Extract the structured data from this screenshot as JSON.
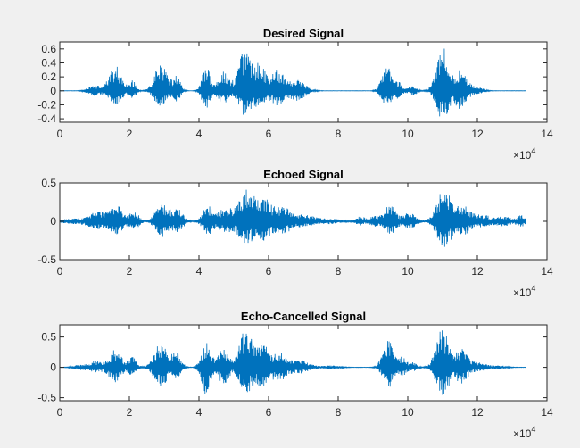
{
  "chart_data": [
    {
      "type": "line",
      "title": "Desired Signal",
      "xlim": [
        0,
        140000
      ],
      "ylim": [
        -0.45,
        0.7
      ],
      "xticks": [
        0,
        20000,
        40000,
        60000,
        80000,
        100000,
        120000,
        140000
      ],
      "xtick_labels": [
        "0",
        "2",
        "4",
        "6",
        "8",
        "10",
        "12",
        "14"
      ],
      "yticks": [
        -0.4,
        -0.2,
        0,
        0.2,
        0.4,
        0.6
      ],
      "ytick_labels": [
        "-0.4",
        "-0.2",
        "0",
        "0.2",
        "0.4",
        "0.6"
      ],
      "x_exponent": {
        "base": "×10",
        "power": "4"
      },
      "signal_length": 134000,
      "color": "#0072BD",
      "bursts": [
        {
          "c": 10000,
          "w": 2500,
          "a": 0.08,
          "neg": 0.07
        },
        {
          "c": 16000,
          "w": 2500,
          "a": 0.36,
          "neg": 0.22
        },
        {
          "c": 21000,
          "w": 1300,
          "a": 0.15,
          "neg": 0.1
        },
        {
          "c": 29000,
          "w": 2400,
          "a": 0.4,
          "neg": 0.25
        },
        {
          "c": 33500,
          "w": 1600,
          "a": 0.22,
          "neg": 0.15
        },
        {
          "c": 42000,
          "w": 1600,
          "a": 0.36,
          "neg": 0.25
        },
        {
          "c": 47000,
          "w": 2200,
          "a": 0.28,
          "neg": 0.18
        },
        {
          "c": 53000,
          "w": 2400,
          "a": 0.62,
          "neg": 0.36
        },
        {
          "c": 57500,
          "w": 2200,
          "a": 0.42,
          "neg": 0.28
        },
        {
          "c": 62500,
          "w": 2600,
          "a": 0.3,
          "neg": 0.2
        },
        {
          "c": 68000,
          "w": 3500,
          "a": 0.16,
          "neg": 0.14
        },
        {
          "c": 94000,
          "w": 2000,
          "a": 0.35,
          "neg": 0.23
        },
        {
          "c": 97500,
          "w": 1500,
          "a": 0.12,
          "neg": 0.1
        },
        {
          "c": 101500,
          "w": 1600,
          "a": 0.07,
          "neg": 0.06
        },
        {
          "c": 110000,
          "w": 2400,
          "a": 0.66,
          "neg": 0.42
        },
        {
          "c": 115000,
          "w": 2400,
          "a": 0.3,
          "neg": 0.25
        },
        {
          "c": 119500,
          "w": 2500,
          "a": 0.06,
          "neg": 0.05
        }
      ],
      "noise": 0.002
    },
    {
      "type": "line",
      "title": "Echoed Signal",
      "xlim": [
        0,
        140000
      ],
      "ylim": [
        -0.5,
        0.5
      ],
      "xticks": [
        0,
        20000,
        40000,
        60000,
        80000,
        100000,
        120000,
        140000
      ],
      "xtick_labels": [
        "0",
        "2",
        "4",
        "6",
        "8",
        "10",
        "12",
        "14"
      ],
      "yticks": [
        -0.5,
        0,
        0.5
      ],
      "ytick_labels": [
        "-0.5",
        "0",
        "0.5"
      ],
      "x_exponent": {
        "base": "×10",
        "power": "4"
      },
      "signal_length": 134000,
      "color": "#0072BD",
      "bursts": [
        {
          "c": 4000,
          "w": 5000,
          "a": 0.03,
          "neg": 0.03
        },
        {
          "c": 11000,
          "w": 3500,
          "a": 0.12,
          "neg": 0.1
        },
        {
          "c": 16500,
          "w": 2600,
          "a": 0.2,
          "neg": 0.16
        },
        {
          "c": 21500,
          "w": 1800,
          "a": 0.12,
          "neg": 0.1
        },
        {
          "c": 29500,
          "w": 2600,
          "a": 0.23,
          "neg": 0.2
        },
        {
          "c": 34000,
          "w": 2000,
          "a": 0.15,
          "neg": 0.13
        },
        {
          "c": 42500,
          "w": 2000,
          "a": 0.2,
          "neg": 0.17
        },
        {
          "c": 47500,
          "w": 2500,
          "a": 0.18,
          "neg": 0.15
        },
        {
          "c": 53500,
          "w": 3000,
          "a": 0.4,
          "neg": 0.3
        },
        {
          "c": 58500,
          "w": 2800,
          "a": 0.28,
          "neg": 0.22
        },
        {
          "c": 64000,
          "w": 3500,
          "a": 0.18,
          "neg": 0.15
        },
        {
          "c": 70500,
          "w": 4000,
          "a": 0.08,
          "neg": 0.07
        },
        {
          "c": 78000,
          "w": 3500,
          "a": 0.03,
          "neg": 0.03
        },
        {
          "c": 86500,
          "w": 1800,
          "a": 0.06,
          "neg": 0.05
        },
        {
          "c": 90500,
          "w": 1800,
          "a": 0.08,
          "neg": 0.07
        },
        {
          "c": 95000,
          "w": 2200,
          "a": 0.22,
          "neg": 0.18
        },
        {
          "c": 100500,
          "w": 2400,
          "a": 0.12,
          "neg": 0.1
        },
        {
          "c": 110500,
          "w": 2800,
          "a": 0.44,
          "neg": 0.35
        },
        {
          "c": 116000,
          "w": 2800,
          "a": 0.2,
          "neg": 0.17
        },
        {
          "c": 121500,
          "w": 3000,
          "a": 0.08,
          "neg": 0.07
        },
        {
          "c": 127500,
          "w": 3000,
          "a": 0.06,
          "neg": 0.06
        },
        {
          "c": 132500,
          "w": 1500,
          "a": 0.08,
          "neg": 0.07
        }
      ],
      "noise": 0.004
    },
    {
      "type": "line",
      "title": "Echo-Cancelled Signal",
      "xlim": [
        0,
        140000
      ],
      "ylim": [
        -0.55,
        0.7
      ],
      "xticks": [
        0,
        20000,
        40000,
        60000,
        80000,
        100000,
        120000,
        140000
      ],
      "xtick_labels": [
        "0",
        "2",
        "4",
        "6",
        "8",
        "10",
        "12",
        "14"
      ],
      "yticks": [
        -0.5,
        0,
        0.5
      ],
      "ytick_labels": [
        "-0.5",
        "0",
        "0.5"
      ],
      "x_exponent": {
        "base": "×10",
        "power": "4"
      },
      "signal_length": 134000,
      "color": "#0072BD",
      "bursts": [
        {
          "c": 6000,
          "w": 2500,
          "a": 0.04,
          "neg": 0.04
        },
        {
          "c": 10500,
          "w": 2500,
          "a": 0.1,
          "neg": 0.08
        },
        {
          "c": 16000,
          "w": 2500,
          "a": 0.3,
          "neg": 0.25
        },
        {
          "c": 21000,
          "w": 1500,
          "a": 0.18,
          "neg": 0.14
        },
        {
          "c": 29000,
          "w": 2500,
          "a": 0.42,
          "neg": 0.34
        },
        {
          "c": 33500,
          "w": 1800,
          "a": 0.24,
          "neg": 0.18
        },
        {
          "c": 42000,
          "w": 1800,
          "a": 0.4,
          "neg": 0.44
        },
        {
          "c": 47000,
          "w": 2300,
          "a": 0.3,
          "neg": 0.28
        },
        {
          "c": 53500,
          "w": 2500,
          "a": 0.68,
          "neg": 0.42
        },
        {
          "c": 58000,
          "w": 2400,
          "a": 0.4,
          "neg": 0.3
        },
        {
          "c": 63000,
          "w": 2800,
          "a": 0.25,
          "neg": 0.22
        },
        {
          "c": 69000,
          "w": 3500,
          "a": 0.12,
          "neg": 0.1
        },
        {
          "c": 78000,
          "w": 3000,
          "a": 0.03,
          "neg": 0.03
        },
        {
          "c": 94500,
          "w": 2200,
          "a": 0.46,
          "neg": 0.33
        },
        {
          "c": 98500,
          "w": 1500,
          "a": 0.16,
          "neg": 0.13
        },
        {
          "c": 101500,
          "w": 1500,
          "a": 0.08,
          "neg": 0.06
        },
        {
          "c": 110000,
          "w": 2500,
          "a": 0.66,
          "neg": 0.48
        },
        {
          "c": 115500,
          "w": 2500,
          "a": 0.3,
          "neg": 0.26
        },
        {
          "c": 120500,
          "w": 2800,
          "a": 0.07,
          "neg": 0.06
        },
        {
          "c": 126000,
          "w": 2800,
          "a": 0.03,
          "neg": 0.03
        }
      ],
      "noise": 0.003
    }
  ]
}
